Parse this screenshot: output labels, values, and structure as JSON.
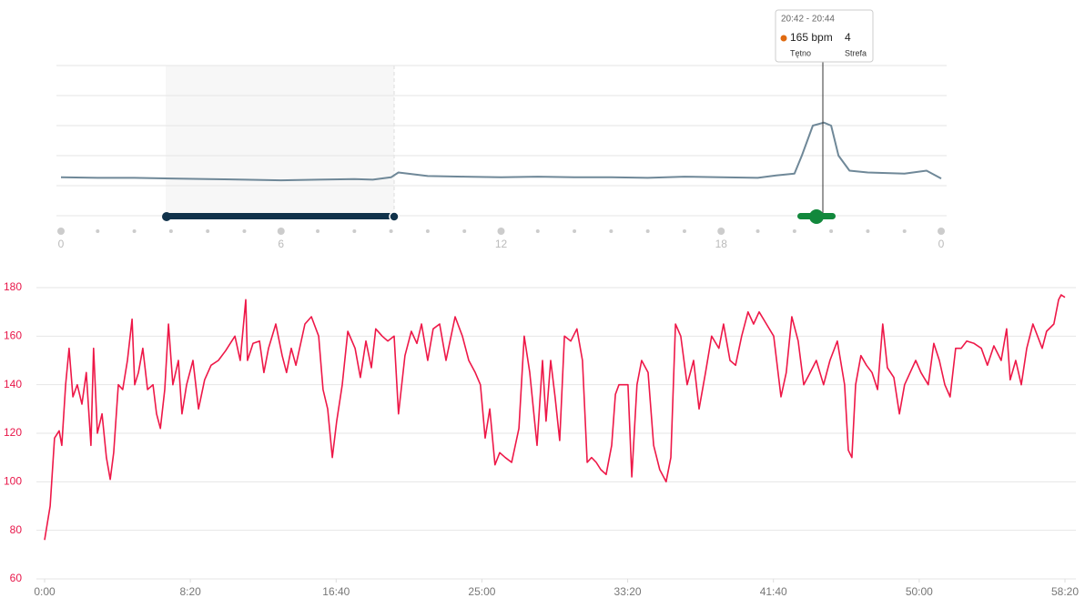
{
  "chart_data": [
    {
      "type": "line",
      "x": [
        0,
        1,
        2,
        3,
        4,
        5,
        6,
        7,
        8,
        8.5,
        9,
        9.2,
        10,
        11,
        12,
        13,
        14,
        15,
        16,
        17,
        18,
        19,
        19.5,
        20,
        20.2,
        20.5,
        20.8,
        21,
        21.2,
        21.5,
        22,
        23,
        23.6,
        24
      ],
      "series": [
        {
          "color": "#6f8898",
          "values": [
            64,
            63,
            63,
            62,
            61,
            60,
            59,
            60,
            61,
            60,
            64,
            72,
            66,
            65,
            64,
            65,
            64,
            64,
            63,
            65,
            64,
            63,
            67,
            70,
            100,
            150,
            155,
            150,
            100,
            75,
            72,
            70,
            75,
            62
          ]
        }
      ],
      "xlim": [
        0,
        24
      ],
      "ylim": [
        0,
        250
      ],
      "xticks": [
        0,
        6,
        12,
        18,
        {
          "value": 24,
          "label": "0"
        }
      ],
      "grid": true,
      "tooltip": {
        "time": "20:42 - 20:44",
        "value": "165 bpm",
        "zone": "4",
        "value_label": "Tętno",
        "zone_label": "Strefa"
      }
    },
    {
      "type": "line",
      "x": [
        0,
        19,
        34,
        50,
        59,
        72,
        84,
        97,
        112,
        128,
        143,
        159,
        168,
        181,
        197,
        212,
        225,
        237,
        253,
        268,
        284,
        300,
        309,
        322,
        337,
        353,
        372,
        384,
        397,
        412,
        425,
        440,
        459,
        471,
        487,
        509,
        528,
        549,
        571,
        596,
        621,
        653,
        671,
        690,
        696,
        715,
        737,
        752,
        768,
        793,
        815,
        830,
        846,
        862,
        893,
        915,
        940,
        955,
        971,
        987,
        1002,
        1021,
        1040,
        1065,
        1083,
        1102,
        1121,
        1136,
        1158,
        1177,
        1199,
        1214,
        1236,
        1258,
        1277,
        1293,
        1314,
        1333,
        1355,
        1377,
        1408,
        1433,
        1455,
        1477,
        1495,
        1511,
        1527,
        1545,
        1561,
        1580,
        1602,
        1627,
        1645,
        1664,
        1689,
        1708,
        1720,
        1736,
        1751,
        1767,
        1783,
        1805,
        1826,
        1845,
        1861,
        1876,
        1892,
        1908,
        1926,
        1945,
        1958,
        1970,
        2001,
        2014,
        2032,
        2048,
        2070,
        2089,
        2110,
        2132,
        2148,
        2164,
        2182,
        2204,
        2226,
        2245,
        2267,
        2288,
        2313,
        2329,
        2351,
        2370,
        2391,
        2413,
        2432,
        2451,
        2476,
        2501,
        2526,
        2544,
        2563,
        2585,
        2604,
        2626,
        2647,
        2672,
        2694,
        2719,
        2744,
        2757,
        2769,
        2782,
        2800,
        2819,
        2838,
        2857,
        2875,
        2891,
        2913,
        2932,
        2950,
        2969,
        2988,
        3006,
        3031,
        3050,
        3069,
        3088,
        3106,
        3125,
        3144,
        3163,
        3188,
        3213,
        3234,
        3256,
        3281,
        3300,
        3312,
        3331,
        3350,
        3369,
        3390,
        3406,
        3422,
        3437,
        3462,
        3478,
        3487,
        3500
      ],
      "series": [
        {
          "color": "#ee1848",
          "values": [
            76,
            90,
            118,
            121,
            115,
            140,
            155,
            135,
            140,
            132,
            145,
            115,
            155,
            120,
            128,
            110,
            101,
            112,
            140,
            138,
            150,
            167,
            140,
            145,
            155,
            138,
            140,
            128,
            122,
            138,
            165,
            140,
            150,
            128,
            140,
            150,
            130,
            142,
            148,
            150,
            154,
            160,
            150,
            175,
            150,
            157,
            158,
            145,
            155,
            165,
            152,
            145,
            155,
            148,
            165,
            168,
            160,
            138,
            130,
            110,
            125,
            140,
            162,
            155,
            143,
            158,
            147,
            163,
            160,
            158,
            160,
            128,
            152,
            162,
            157,
            165,
            150,
            163,
            165,
            150,
            168,
            160,
            150,
            145,
            140,
            118,
            130,
            107,
            112,
            110,
            108,
            122,
            160,
            145,
            115,
            150,
            125,
            150,
            135,
            117,
            160,
            158,
            163,
            150,
            108,
            110,
            108,
            105,
            103,
            115,
            136,
            140,
            140,
            102,
            140,
            150,
            145,
            115,
            105,
            100,
            110,
            165,
            160,
            140,
            150,
            130,
            145,
            160,
            155,
            165,
            150,
            148,
            160,
            170,
            165,
            170,
            165,
            160,
            135,
            145,
            168,
            158,
            140,
            145,
            150,
            140,
            150,
            158,
            140,
            113,
            110,
            140,
            152,
            148,
            145,
            138,
            165,
            147,
            143,
            128,
            140,
            145,
            150,
            145,
            140,
            157,
            150,
            140,
            135,
            155,
            155,
            158,
            157,
            155,
            148,
            156,
            150,
            163,
            142,
            150,
            140,
            155,
            165,
            160,
            155,
            162,
            165,
            175,
            177,
            176
          ]
        }
      ],
      "xlim": [
        0,
        3500
      ],
      "ylim": [
        60,
        180
      ],
      "xticks": [
        {
          "value": 0,
          "label": "0:00"
        },
        {
          "value": 500,
          "label": "8:20"
        },
        {
          "value": 1000,
          "label": "16:40"
        },
        {
          "value": 1500,
          "label": "25:00"
        },
        {
          "value": 2000,
          "label": "33:20"
        },
        {
          "value": 2500,
          "label": "41:40"
        },
        {
          "value": 3000,
          "label": "50:00"
        },
        {
          "value": 3500,
          "label": "58:20"
        }
      ],
      "yticks": [
        60,
        80,
        100,
        120,
        140,
        160,
        180
      ],
      "grid": true
    }
  ]
}
